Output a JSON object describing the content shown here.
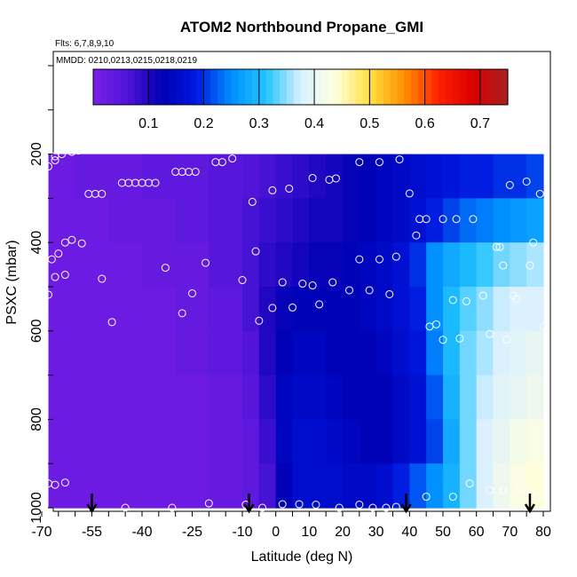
{
  "chart_data": {
    "type": "heatmap",
    "title": "ATOM2 Northbound Propane_GMI",
    "flights_label": "Flts: 6,7,8,9,10",
    "dates_label": "MMDD: 0210,0213,0215,0218,0219",
    "xlabel": "Latitude (deg N)",
    "ylabel": "PSXC (mbar)",
    "xlim": [
      -70,
      80
    ],
    "ylim": [
      1000,
      0
    ],
    "x_ticks": [
      -70,
      -55,
      -40,
      -25,
      -10,
      0,
      10,
      20,
      30,
      40,
      50,
      60,
      70,
      80
    ],
    "y_ticks": [
      200,
      400,
      600,
      800,
      1000
    ],
    "colorbar": {
      "min": 0.0,
      "max": 0.75,
      "tick_values": [
        0.1,
        0.2,
        0.3,
        0.4,
        0.5,
        0.6,
        0.7
      ],
      "tick_labels": [
        "0.1",
        "0.2",
        "0.3",
        "0.4",
        "0.5",
        "0.6",
        "0.7"
      ],
      "colors": [
        "#7a1fe8",
        "#5014d8",
        "#0000b4",
        "#0018e0",
        "#0090ff",
        "#22c4ff",
        "#d8f0ff",
        "#ffffe0",
        "#ffe040",
        "#ff9000",
        "#ff2000",
        "#d80000",
        "#a82020"
      ]
    },
    "curtain": {
      "lat_edges": [
        -68,
        -60,
        -50,
        -40,
        -30,
        -20,
        -10,
        -5,
        0,
        5,
        10,
        15,
        20,
        25,
        30,
        35,
        40,
        45,
        50,
        55,
        60,
        65,
        70,
        75,
        80
      ],
      "p_edges": [
        200,
        300,
        400,
        500,
        600,
        700,
        800,
        900,
        1000
      ],
      "values": [
        [
          0.02,
          0.03,
          0.03,
          0.04,
          0.04,
          0.05,
          0.06,
          0.07,
          0.08,
          0.09,
          0.1,
          0.11,
          0.12,
          0.13,
          0.14,
          0.15,
          0.16,
          0.17,
          0.18,
          0.19,
          0.19,
          0.2,
          0.2,
          0.21
        ],
        [
          0.02,
          0.02,
          0.03,
          0.03,
          0.04,
          0.05,
          0.07,
          0.08,
          0.09,
          0.1,
          0.11,
          0.11,
          0.12,
          0.13,
          0.14,
          0.15,
          0.17,
          0.19,
          0.21,
          0.23,
          0.24,
          0.25,
          0.26,
          0.27
        ],
        [
          0.02,
          0.02,
          0.02,
          0.03,
          0.03,
          0.05,
          0.07,
          0.09,
          0.1,
          0.11,
          0.12,
          0.12,
          0.13,
          0.14,
          0.15,
          0.17,
          0.2,
          0.25,
          0.28,
          0.3,
          0.32,
          0.34,
          0.35,
          0.36
        ],
        [
          0.02,
          0.02,
          0.02,
          0.02,
          0.03,
          0.04,
          0.07,
          0.1,
          0.12,
          0.13,
          0.13,
          0.13,
          0.13,
          0.14,
          0.15,
          0.17,
          0.19,
          0.25,
          0.3,
          0.33,
          0.35,
          0.37,
          0.38,
          0.38
        ],
        [
          0.02,
          0.02,
          0.02,
          0.02,
          0.03,
          0.04,
          0.06,
          0.1,
          0.13,
          0.14,
          0.14,
          0.13,
          0.13,
          0.13,
          0.14,
          0.16,
          0.18,
          0.24,
          0.3,
          0.34,
          0.36,
          0.38,
          0.39,
          0.4
        ],
        [
          0.02,
          0.02,
          0.02,
          0.02,
          0.02,
          0.03,
          0.05,
          0.09,
          0.14,
          0.15,
          0.15,
          0.14,
          0.13,
          0.13,
          0.13,
          0.15,
          0.17,
          0.22,
          0.29,
          0.34,
          0.37,
          0.39,
          0.4,
          0.41
        ],
        [
          0.02,
          0.02,
          0.02,
          0.02,
          0.02,
          0.03,
          0.04,
          0.08,
          0.14,
          0.16,
          0.16,
          0.15,
          0.14,
          0.13,
          0.13,
          0.15,
          0.17,
          0.21,
          0.28,
          0.34,
          0.38,
          0.4,
          0.42,
          0.43
        ],
        [
          0.02,
          0.02,
          0.02,
          0.02,
          0.02,
          0.03,
          0.04,
          0.07,
          0.13,
          0.16,
          0.16,
          0.16,
          0.15,
          0.15,
          0.16,
          0.19,
          0.22,
          0.25,
          0.29,
          0.34,
          0.38,
          0.41,
          0.43,
          0.44
        ]
      ]
    },
    "observations": [
      [
        -64,
        200
      ],
      [
        -61,
        195
      ],
      [
        -59,
        192
      ],
      [
        -66,
        205
      ],
      [
        -68,
        228
      ],
      [
        -66,
        214
      ],
      [
        -56,
        290
      ],
      [
        -54,
        290
      ],
      [
        -52,
        290
      ],
      [
        -46,
        265
      ],
      [
        -44,
        265
      ],
      [
        -42,
        265
      ],
      [
        -40,
        265
      ],
      [
        -38,
        265
      ],
      [
        -36,
        265
      ],
      [
        -30,
        240
      ],
      [
        -28,
        240
      ],
      [
        -26,
        240
      ],
      [
        -24,
        240
      ],
      [
        -18,
        218
      ],
      [
        -16,
        218
      ],
      [
        -13,
        210
      ],
      [
        -7,
        308
      ],
      [
        -1,
        282
      ],
      [
        4,
        278
      ],
      [
        11,
        254
      ],
      [
        16,
        258
      ],
      [
        18,
        255
      ],
      [
        25,
        218
      ],
      [
        31,
        218
      ],
      [
        37,
        212
      ],
      [
        -67,
        438
      ],
      [
        -65,
        425
      ],
      [
        -63,
        400
      ],
      [
        -61,
        394
      ],
      [
        -58,
        402
      ],
      [
        -66,
        478
      ],
      [
        -63,
        473
      ],
      [
        -68,
        518
      ],
      [
        -52,
        482
      ],
      [
        -49,
        580
      ],
      [
        -33,
        457
      ],
      [
        -21,
        446
      ],
      [
        -25,
        515
      ],
      [
        -28,
        560
      ],
      [
        -10,
        485
      ],
      [
        -6,
        420
      ],
      [
        -5,
        577
      ],
      [
        -1,
        548
      ],
      [
        2,
        490
      ],
      [
        5,
        547
      ],
      [
        8,
        493
      ],
      [
        11,
        497
      ],
      [
        13,
        540
      ],
      [
        17,
        490
      ],
      [
        22,
        508
      ],
      [
        25,
        438
      ],
      [
        28,
        508
      ],
      [
        31,
        438
      ],
      [
        34,
        517
      ],
      [
        36,
        432
      ],
      [
        40,
        289
      ],
      [
        42,
        384
      ],
      [
        43,
        347
      ],
      [
        45,
        347
      ],
      [
        46,
        590
      ],
      [
        48,
        585
      ],
      [
        50,
        347
      ],
      [
        50,
        620
      ],
      [
        53,
        530
      ],
      [
        54,
        347
      ],
      [
        55,
        617
      ],
      [
        57,
        533
      ],
      [
        59,
        347
      ],
      [
        62,
        520
      ],
      [
        64,
        607
      ],
      [
        66,
        410
      ],
      [
        67,
        410
      ],
      [
        68,
        452
      ],
      [
        69,
        620
      ],
      [
        70,
        270
      ],
      [
        71,
        520
      ],
      [
        72,
        528
      ],
      [
        75,
        262
      ],
      [
        76,
        452
      ],
      [
        77,
        400
      ],
      [
        79,
        290
      ],
      [
        80,
        590
      ],
      [
        -68,
        945
      ],
      [
        -66,
        948
      ],
      [
        -63,
        943
      ],
      [
        -45,
        1000
      ],
      [
        -31,
        1000
      ],
      [
        -20,
        990
      ],
      [
        -9,
        993
      ],
      [
        -4,
        1000
      ],
      [
        2,
        992
      ],
      [
        7,
        992
      ],
      [
        12,
        993
      ],
      [
        19,
        1000
      ],
      [
        25,
        993
      ],
      [
        29,
        1000
      ],
      [
        33,
        1000
      ],
      [
        36,
        998
      ],
      [
        45,
        975
      ],
      [
        53,
        975
      ],
      [
        58,
        945
      ],
      [
        64,
        960
      ],
      [
        68,
        960
      ],
      [
        73,
        957
      ],
      [
        76,
        968
      ],
      [
        78,
        975
      ]
    ],
    "arrows_lat": [
      -55,
      -8,
      39,
      76
    ]
  }
}
